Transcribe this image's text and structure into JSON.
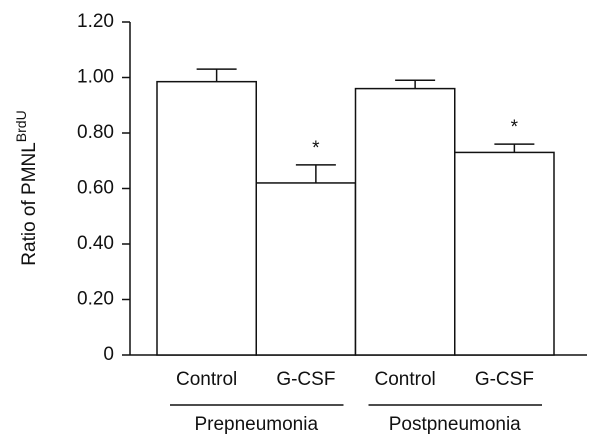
{
  "chart_data": {
    "type": "bar",
    "y_label": "Ratio of PMNL",
    "y_label_superscript": "BrdU",
    "categories": [
      "Control",
      "G-CSF",
      "Control",
      "G-CSF"
    ],
    "values": [
      0.985,
      0.62,
      0.96,
      0.73
    ],
    "errors": [
      0.045,
      0.065,
      0.03,
      0.03
    ],
    "annotations": [
      null,
      "*",
      null,
      "*"
    ],
    "groups": [
      "Prepneumonia",
      "Postpneumonia"
    ],
    "color": "#ffffff",
    "ylim": [
      0,
      1.2
    ],
    "yticks": [
      0,
      {
        "value": 0.2,
        "label": "0.20"
      },
      {
        "value": 0.4,
        "label": "0.40"
      },
      {
        "value": 0.6,
        "label": "0.60"
      },
      {
        "value": 0.8,
        "label": "0.80"
      },
      {
        "value": 1.0,
        "label": "1.00"
      },
      {
        "value": 1.2,
        "label": "1.20"
      }
    ],
    "grid": false
  }
}
